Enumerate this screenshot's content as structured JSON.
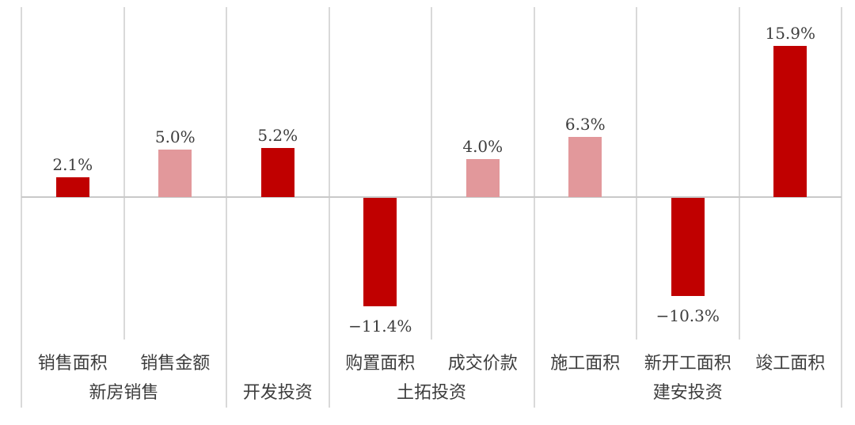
{
  "colors": {
    "bar_dark_red": "#c00000",
    "bar_light_pink": "#e2989b",
    "gridline": "#d9d9d9",
    "zero_line": "#c9c9c9",
    "label_text": "#3d3d3d",
    "background": "#ffffff"
  },
  "chart_data": {
    "type": "bar",
    "title": "",
    "xlabel": "",
    "ylabel": "",
    "unit": "%",
    "ylim": [
      -14,
      17
    ],
    "legend": "none",
    "grid": "vertical column separators only, horizontal zero axis",
    "categories": [
      "销售面积",
      "销售金额",
      "开发投资",
      "购置面积",
      "成交价款",
      "施工面积",
      "新开工面积",
      "竣工面积"
    ],
    "values": [
      2.1,
      5.0,
      5.2,
      -11.4,
      4.0,
      6.3,
      -10.3,
      15.9
    ],
    "value_labels": [
      "2.1%",
      "5.0%",
      "5.2%",
      "−11.4%",
      "4.0%",
      "6.3%",
      "−10.3%",
      "15.9%"
    ],
    "bar_styles": [
      "dark",
      "light",
      "dark",
      "dark",
      "light",
      "light",
      "dark",
      "dark"
    ],
    "category_axis_labels": [
      "销售面积",
      "销售金额",
      "",
      "购置面积",
      "成交价款",
      "施工面积",
      "新开工面积",
      "竣工面积"
    ],
    "groups": [
      {
        "label": "新房销售",
        "span": [
          0,
          1
        ]
      },
      {
        "label": "开发投资",
        "span": [
          2,
          2
        ]
      },
      {
        "label": "土拓投资",
        "span": [
          3,
          4
        ]
      },
      {
        "label": "建安投资",
        "span": [
          5,
          7
        ]
      }
    ]
  }
}
